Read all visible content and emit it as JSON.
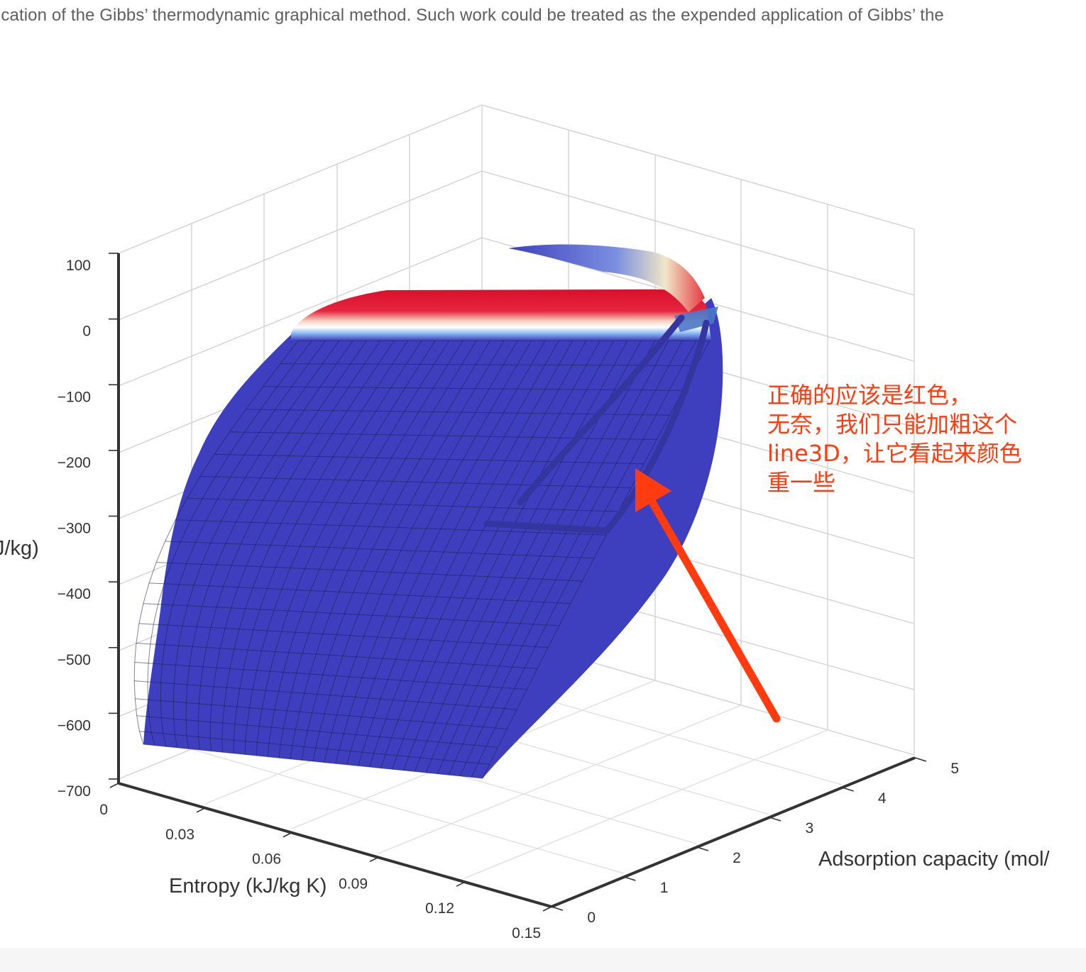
{
  "page": {
    "top_text": "ication of the Gibbs’ thermodynamic graphical method. Such work could be treated as the expended application of Gibbs’ the"
  },
  "annotation": {
    "lines": [
      "正确的应该是红色，",
      "无奈，我们只能加粗这个",
      "line3D，让它看起来颜色",
      "重一些"
    ],
    "color": "#ff3b0f"
  },
  "chart_data": {
    "type": "surface",
    "xlabel": "Entropy (kJ/kg K)",
    "ylabel": "Adsorption capacity (mol/",
    "zlabel": "J/kg)",
    "xlim": [
      0,
      0.15
    ],
    "ylim": [
      0,
      5
    ],
    "zlim": [
      -700,
      100
    ],
    "x_ticks": [
      "0",
      "0.03",
      "0.06",
      "0.09",
      "0.12",
      "0.15"
    ],
    "y_ticks": [
      "0",
      "1",
      "2",
      "3",
      "4",
      "5"
    ],
    "z_ticks": [
      "100",
      "0",
      "−100",
      "−200",
      "−300",
      "−400",
      "−500",
      "−600",
      "−700"
    ],
    "grid": true,
    "colorscale": [
      "#3d3fbf",
      "#6aa4ee",
      "#ffffff",
      "#f3c68a",
      "#d8102c"
    ],
    "line3d": {
      "color": "#3b3ba8",
      "style": "thick"
    }
  }
}
